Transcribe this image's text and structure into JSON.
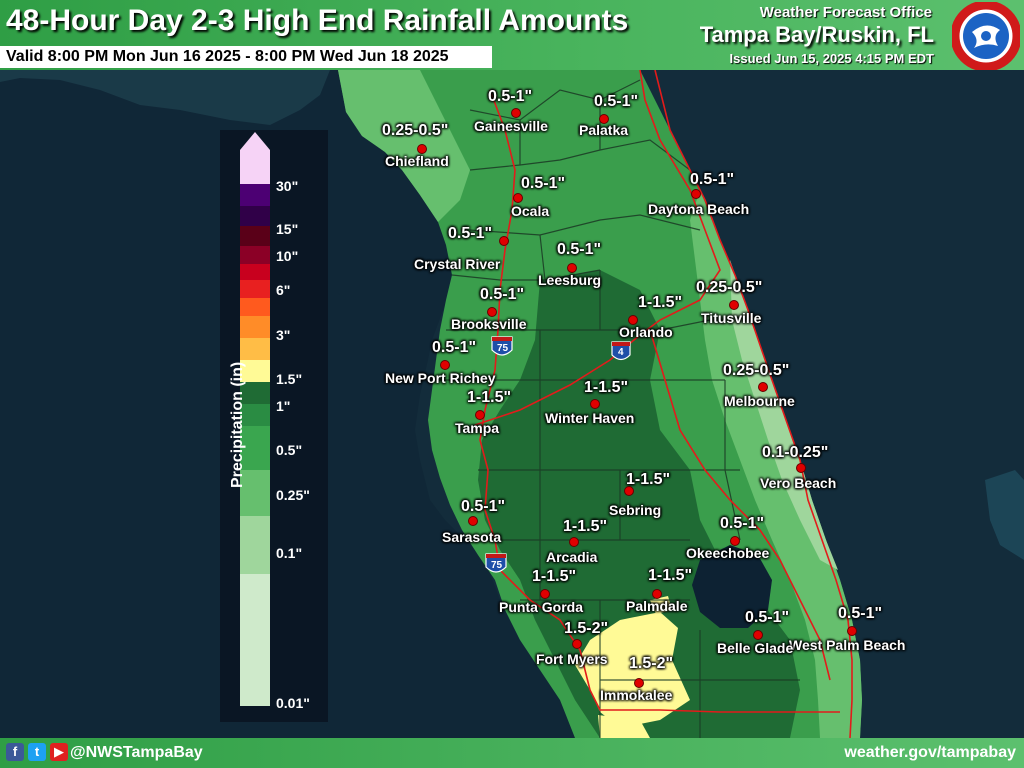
{
  "header": {
    "title": "48-Hour Day 2-3 High End Rainfall Amounts",
    "valid": "Valid 8:00 PM Mon Jun 16 2025 - 8:00 PM Wed Jun 18 2025",
    "office_label": "Weather Forecast Office",
    "office_name": "Tampa Bay/Ruskin, FL",
    "issued": "Issued Jun 15, 2025 4:15 PM EDT"
  },
  "footer": {
    "social": "@NWSTampaBay",
    "website": "weather.gov/tampabay"
  },
  "legend": {
    "title": "Precipitation (in)",
    "ticks": [
      "30\"",
      "15\"",
      "10\"",
      "6\"",
      "3\"",
      "1.5\"",
      "1\"",
      "0.5\"",
      "0.25\"",
      "0.1\"",
      "0.01\""
    ],
    "colors": {
      "top_arrow": "#f6d3f6",
      "bins_top_to_bottom": [
        "#f6d3f6",
        "#4c0073",
        "#300048",
        "#5a0018",
        "#8b0026",
        "#c8001e",
        "#e82020",
        "#ff5a1e",
        "#ff8c28",
        "#ffbd46",
        "#fffa96",
        "#1f6b34",
        "#2a8c43",
        "#3aa64f",
        "#66bf6e",
        "#9fd69c",
        "#cfeacb"
      ]
    }
  },
  "interstates": {
    "i75_north": "75",
    "i4": "4",
    "i75_south": "75"
  },
  "cities": [
    {
      "name": "Gainesville",
      "value": "0.5-1\""
    },
    {
      "name": "Palatka",
      "value": "0.5-1\""
    },
    {
      "name": "Chiefland",
      "value": "0.25-0.5\""
    },
    {
      "name": "Ocala",
      "value": "0.5-1\""
    },
    {
      "name": "Daytona Beach",
      "value": "0.5-1\""
    },
    {
      "name": "Crystal River",
      "value": "0.5-1\""
    },
    {
      "name": "Leesburg",
      "value": "0.5-1\""
    },
    {
      "name": "Titusville",
      "value": "0.25-0.5\""
    },
    {
      "name": "Brooksville",
      "value": "0.5-1\""
    },
    {
      "name": "Orlando",
      "value": "1-1.5\""
    },
    {
      "name": "New Port Richey",
      "value": "0.5-1\""
    },
    {
      "name": "Melbourne",
      "value": "0.25-0.5\""
    },
    {
      "name": "Tampa",
      "value": "1-1.5\""
    },
    {
      "name": "Winter Haven",
      "value": "1-1.5\""
    },
    {
      "name": "Vero Beach",
      "value": "0.1-0.25\""
    },
    {
      "name": "Sebring",
      "value": "1-1.5\""
    },
    {
      "name": "Sarasota",
      "value": "0.5-1\""
    },
    {
      "name": "Okeechobee",
      "value": "0.5-1\""
    },
    {
      "name": "Arcadia",
      "value": "1-1.5\""
    },
    {
      "name": "Punta Gorda",
      "value": "1-1.5\""
    },
    {
      "name": "Palmdale",
      "value": "1-1.5\""
    },
    {
      "name": "West Palm Beach",
      "value": "0.5-1\""
    },
    {
      "name": "Belle Glade",
      "value": "0.5-1\""
    },
    {
      "name": "Fort Myers",
      "value": "1.5-2\""
    },
    {
      "name": "Immokalee",
      "value": "1.5-2\""
    }
  ]
}
